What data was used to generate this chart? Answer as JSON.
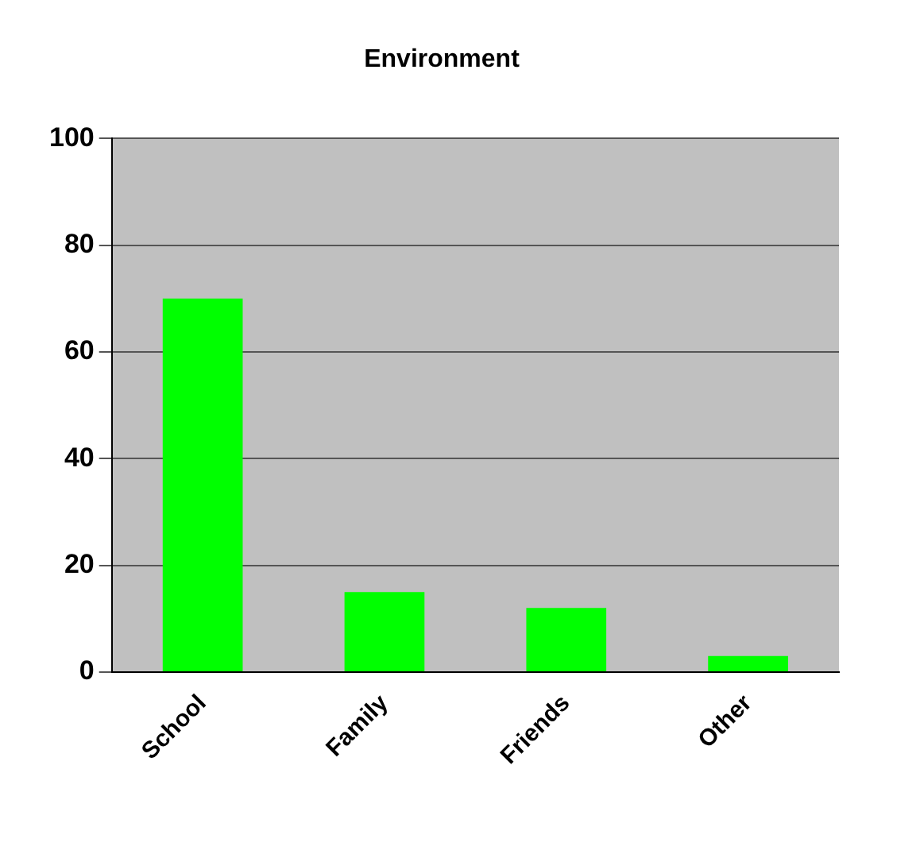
{
  "chart_data": {
    "type": "bar",
    "title": "Environment",
    "categories": [
      "School",
      "Family",
      "Friends",
      "Other"
    ],
    "values": [
      70,
      15,
      12,
      3
    ],
    "color": "#00ff00",
    "ylim": [
      0,
      100
    ],
    "yticks": [
      0,
      20,
      40,
      60,
      80,
      100
    ],
    "grid": "y",
    "legend": false
  }
}
